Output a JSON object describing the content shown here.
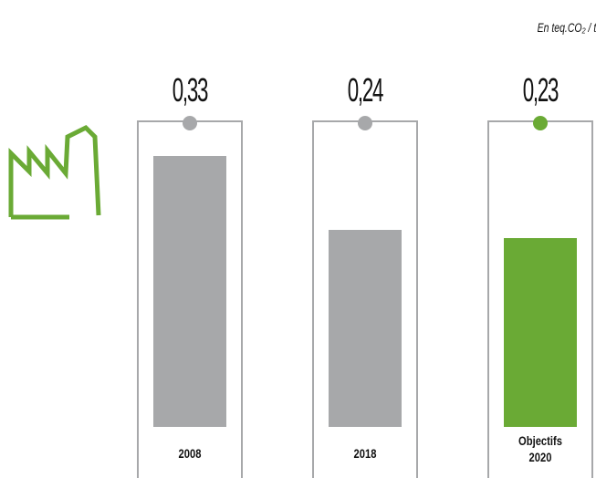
{
  "chart_data": {
    "type": "bar",
    "subtitle": "En teq.CO₂ / t",
    "categories": [
      "2008",
      "2018",
      "Objectifs 2020"
    ],
    "values": [
      0.33,
      0.24,
      0.23
    ],
    "value_labels": [
      "0,33",
      "0,24",
      "0,23"
    ],
    "colors": [
      "#a7a8aa",
      "#a7a8aa",
      "#6aaa35"
    ]
  }
}
